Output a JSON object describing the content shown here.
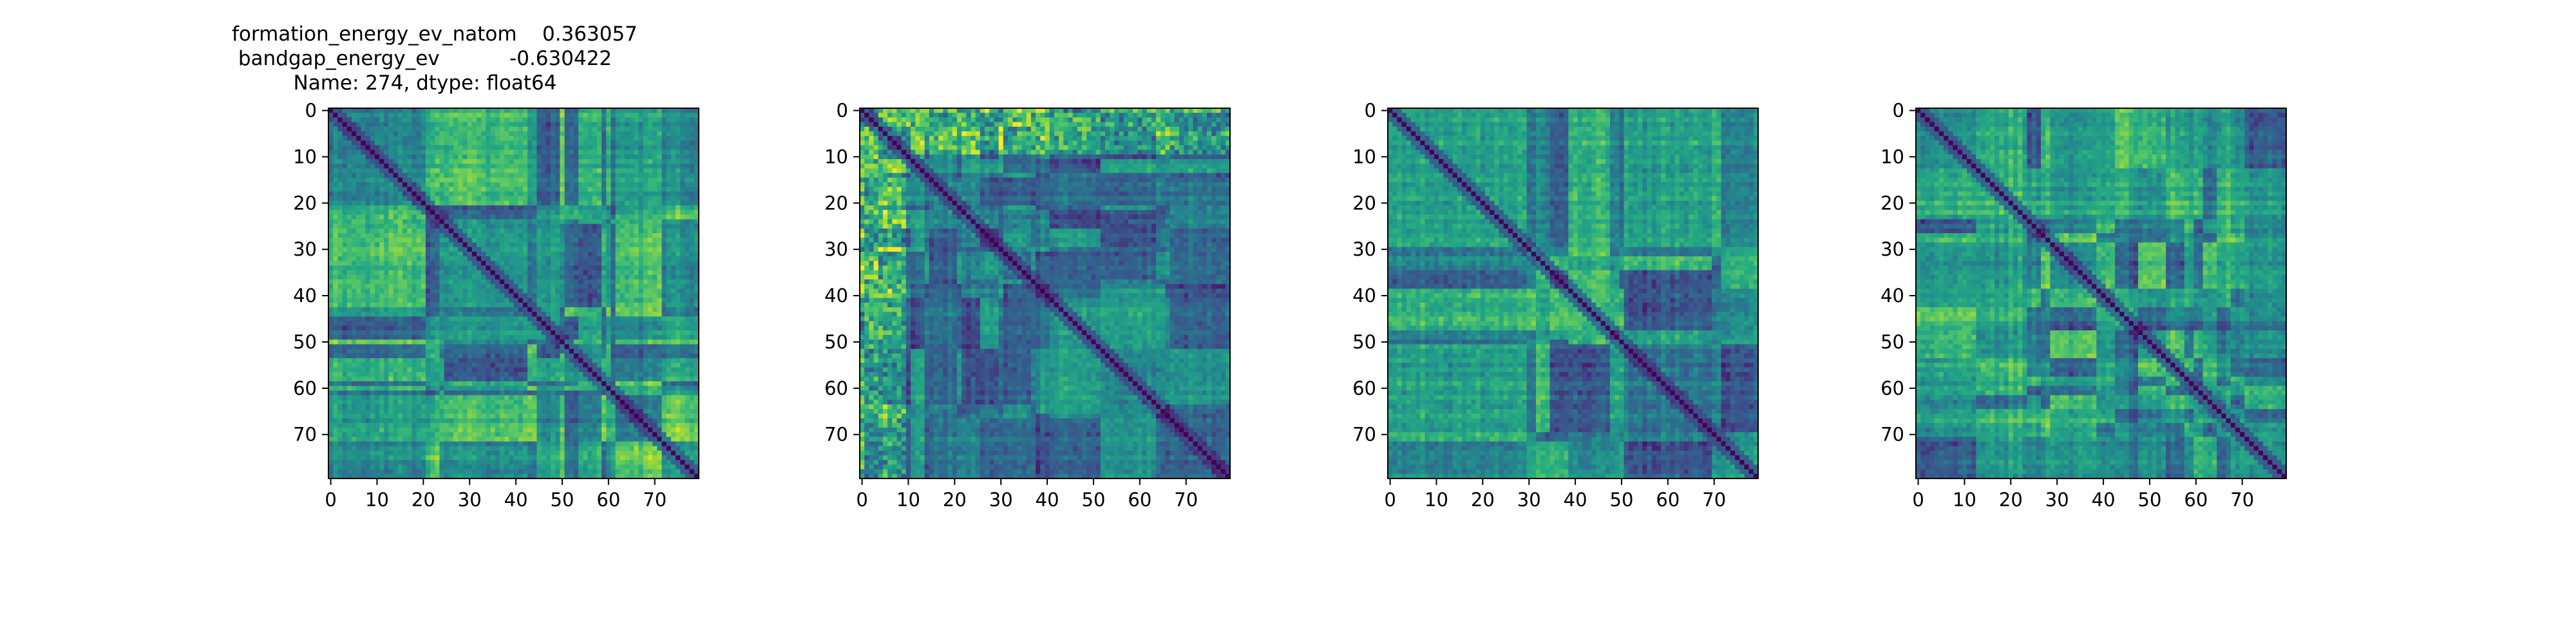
{
  "chart_data": [
    {
      "type": "heatmap",
      "title": "formation_energy_ev_natom    0.363057\nbandgap_energy_ev           -0.630422\nName: 274, dtype: float64",
      "title_lines": [
        "formation_energy_ev_natom    0.363057",
        "bandgap_energy_ev           -0.630422",
        "Name: 274, dtype: float64"
      ],
      "shape": [
        80,
        80
      ],
      "x_ticks": [
        0,
        10,
        20,
        30,
        40,
        50,
        60,
        70
      ],
      "y_ticks": [
        0,
        10,
        20,
        30,
        40,
        50,
        60,
        70
      ],
      "x_tick_labels": [
        "0",
        "10",
        "20",
        "30",
        "40",
        "50",
        "60",
        "70"
      ],
      "y_tick_labels": [
        "0",
        "10",
        "20",
        "30",
        "40",
        "50",
        "60",
        "70"
      ],
      "xlim": [
        -0.5,
        79.5
      ],
      "ylim": [
        79.5,
        -0.5
      ],
      "colormap": "viridis",
      "diagonal": "minimum",
      "pattern": "blocky-moderate",
      "seed": 274,
      "xlabel": "",
      "ylabel": ""
    },
    {
      "type": "heatmap",
      "title": "",
      "shape": [
        80,
        80
      ],
      "x_ticks": [
        0,
        10,
        20,
        30,
        40,
        50,
        60,
        70
      ],
      "y_ticks": [
        0,
        10,
        20,
        30,
        40,
        50,
        60,
        70
      ],
      "x_tick_labels": [
        "0",
        "10",
        "20",
        "30",
        "40",
        "50",
        "60",
        "70"
      ],
      "y_tick_labels": [
        "0",
        "10",
        "20",
        "30",
        "40",
        "50",
        "60",
        "70"
      ],
      "xlim": [
        -0.5,
        79.5
      ],
      "ylim": [
        79.5,
        -0.5
      ],
      "colormap": "viridis",
      "diagonal": "minimum",
      "pattern": "striped-high-contrast",
      "seed": 91,
      "xlabel": "",
      "ylabel": ""
    },
    {
      "type": "heatmap",
      "title": "",
      "shape": [
        80,
        80
      ],
      "x_ticks": [
        0,
        10,
        20,
        30,
        40,
        50,
        60,
        70
      ],
      "y_ticks": [
        0,
        10,
        20,
        30,
        40,
        50,
        60,
        70
      ],
      "x_tick_labels": [
        "0",
        "10",
        "20",
        "30",
        "40",
        "50",
        "60",
        "70"
      ],
      "y_tick_labels": [
        "0",
        "10",
        "20",
        "30",
        "40",
        "50",
        "60",
        "70"
      ],
      "xlim": [
        -0.5,
        79.5
      ],
      "ylim": [
        79.5,
        -0.5
      ],
      "colormap": "viridis",
      "diagonal": "minimum",
      "pattern": "blocky-moderate",
      "seed": 523,
      "xlabel": "",
      "ylabel": ""
    },
    {
      "type": "heatmap",
      "title": "",
      "shape": [
        80,
        80
      ],
      "x_ticks": [
        0,
        10,
        20,
        30,
        40,
        50,
        60,
        70
      ],
      "y_ticks": [
        0,
        10,
        20,
        30,
        40,
        50,
        60,
        70
      ],
      "x_tick_labels": [
        "0",
        "10",
        "20",
        "30",
        "40",
        "50",
        "60",
        "70"
      ],
      "y_tick_labels": [
        "0",
        "10",
        "20",
        "30",
        "40",
        "50",
        "60",
        "70"
      ],
      "xlim": [
        -0.5,
        79.5
      ],
      "ylim": [
        79.5,
        -0.5
      ],
      "colormap": "viridis",
      "diagonal": "minimum",
      "pattern": "smooth-moderate",
      "seed": 777,
      "xlabel": "",
      "ylabel": ""
    }
  ]
}
